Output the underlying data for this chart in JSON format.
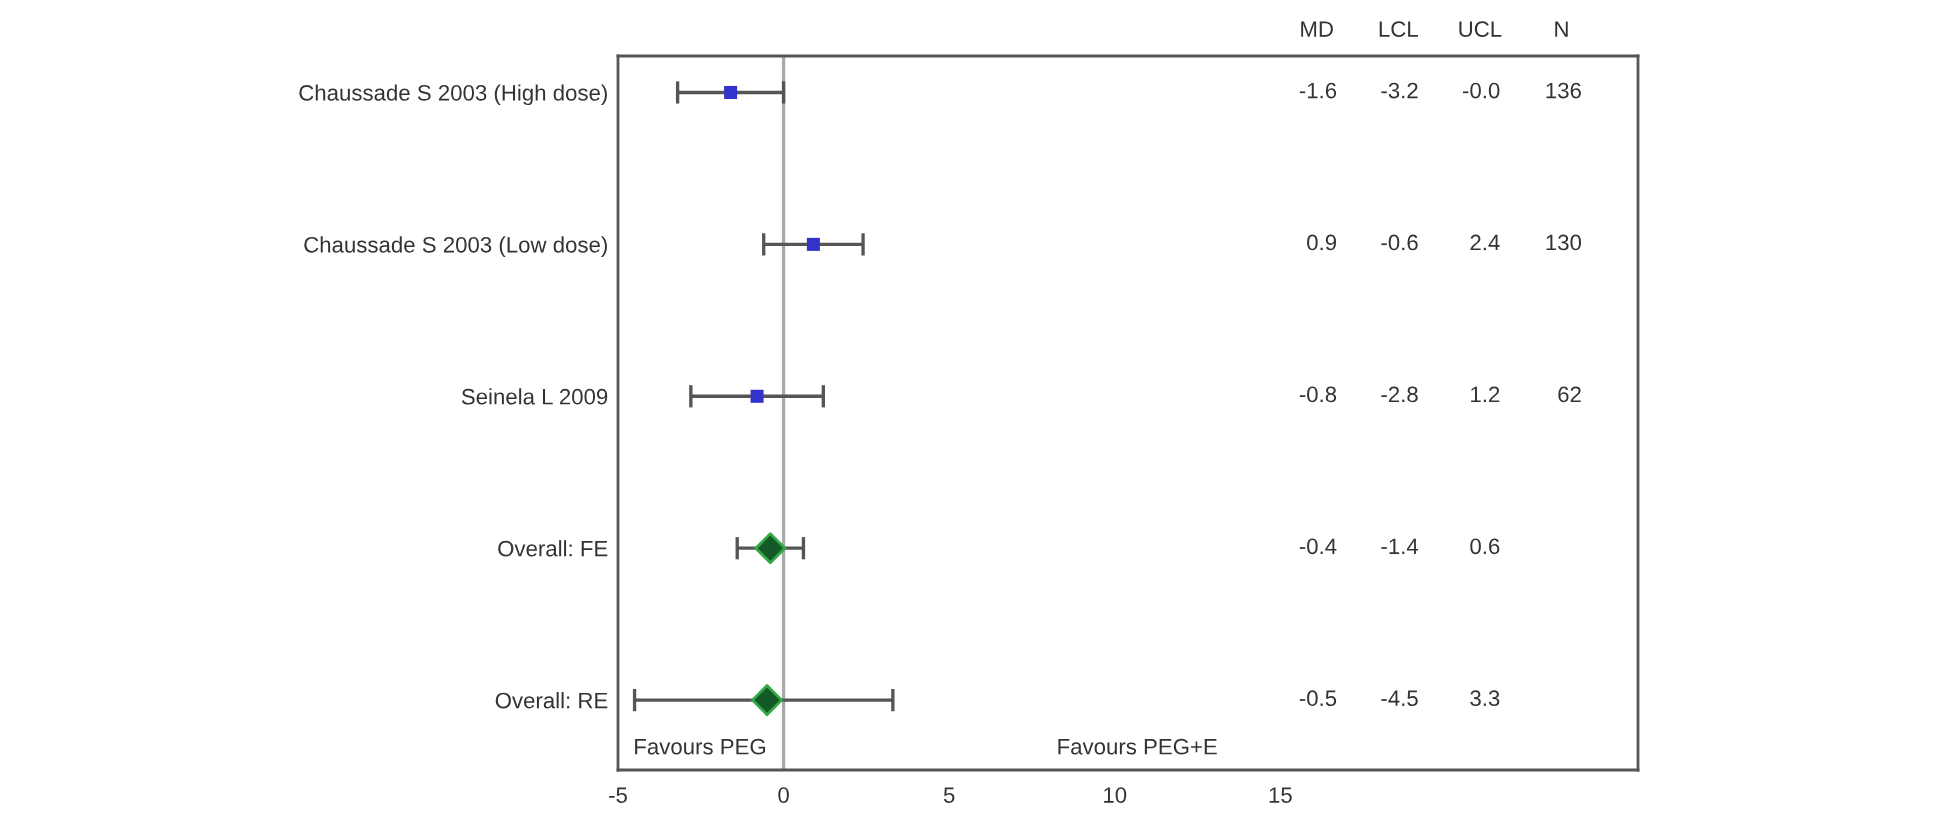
{
  "chart_data": {
    "type": "scatter",
    "orientation": "horizontal",
    "categories": [
      "Chaussade S 2003 (High dose)",
      "Chaussade S 2003 (Low dose)",
      "Seinela L 2009",
      "Overall: FE",
      "Overall: RE"
    ],
    "series": [
      {
        "marker": "square",
        "color": "#3333cc",
        "values": [
          -1.6,
          0.9,
          -0.8,
          null,
          null
        ],
        "errors": [
          [
            -3.2,
            -0.0
          ],
          [
            -0.6,
            2.4
          ],
          [
            -2.8,
            1.2
          ],
          null,
          null
        ]
      },
      {
        "marker": "diamond",
        "color": "#145a28",
        "values": [
          null,
          null,
          null,
          -0.4,
          -0.5
        ],
        "errors": [
          null,
          null,
          null,
          [
            -1.4,
            0.6
          ],
          [
            -4.5,
            3.3
          ]
        ]
      }
    ],
    "grid": false,
    "legend": false,
    "xlim": [
      -5,
      25.8
    ],
    "xticks": [
      -5,
      0,
      5,
      10,
      15
    ],
    "ref_lines": [
      {
        "axis": "x",
        "value": 0,
        "color": "#aaaaaa"
      }
    ],
    "annotations": [
      "MD",
      "LCL",
      "UCL",
      "N",
      "Favours PEG",
      "Favours PEG+E",
      "-1.6",
      "0.9",
      "-0.8",
      "-0.4",
      "-0.5",
      "-3.2",
      "-0.6",
      "-2.8",
      "-1.4",
      "-4.5",
      "-0.0",
      "2.4",
      "1.2",
      "0.6",
      "3.3",
      "136",
      "130",
      "62"
    ]
  }
}
